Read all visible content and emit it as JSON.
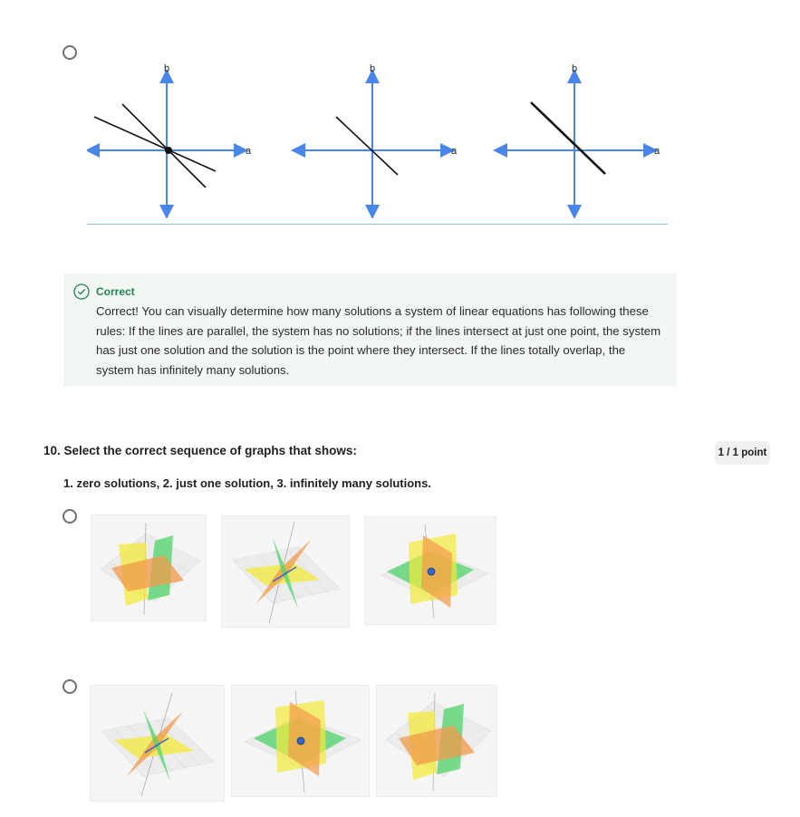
{
  "previous_question": {
    "graph_axis_labels": {
      "x": "a",
      "y": "b"
    },
    "graph_count": 3
  },
  "feedback": {
    "status": "Correct",
    "message": "Correct! You can visually determine how many solutions a system of linear equations has following these rules: If the lines are parallel, the system has no solutions; if the lines intersect at just one point, the system has just one solution and the solution is the point where they intersect. If the lines totally overlap, the system has infinitely many solutions."
  },
  "question": {
    "number_and_title": "10. Select the correct sequence of graphs that shows:",
    "subtext": "1. zero solutions, 2. just one solution, 3. infinitely many solutions.",
    "points": "1 / 1 point"
  },
  "options": [
    {
      "graphs": [
        "zero-solutions-planes",
        "infinite-solutions-planes",
        "one-solution-planes"
      ]
    },
    {
      "graphs": [
        "infinite-solutions-planes",
        "one-solution-planes",
        "zero-solutions-planes"
      ]
    }
  ],
  "colors": {
    "axis_blue": "#4a86e8",
    "correct_green": "#1f8354",
    "plane_yellow": "#f2ea3a",
    "plane_orange": "#f29a4a",
    "plane_green": "#4fd36a",
    "point_blue": "#3465c9"
  }
}
